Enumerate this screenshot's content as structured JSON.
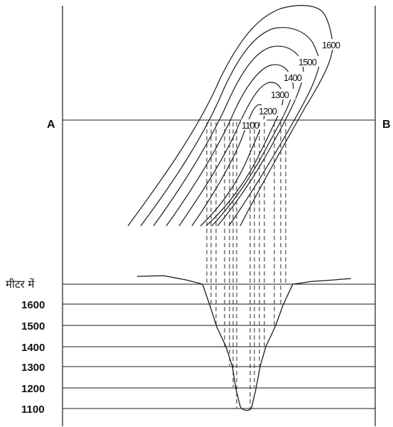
{
  "section": {
    "left_label": "A",
    "right_label": "B"
  },
  "contour_labels": [
    "1600",
    "1500",
    "1400",
    "1300",
    "1200",
    "1100"
  ],
  "profile_axis": {
    "unit_label": "मीटर में",
    "ticks": [
      "1600",
      "1500",
      "1400",
      "1300",
      "1200",
      "1100"
    ]
  }
}
